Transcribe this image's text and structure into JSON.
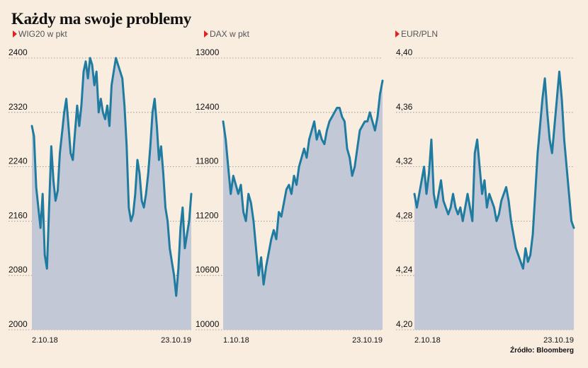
{
  "title": "Każdy ma swoje problemy",
  "source": "Źródło: Bloomberg",
  "colors": {
    "line": "#1f7ba0",
    "area": "#c3c8d6",
    "background": "#f9ede0",
    "marker": "#e2221c"
  },
  "chart_data": [
    {
      "type": "area",
      "title": "WIG20 w pkt",
      "ylim": [
        2000,
        2400
      ],
      "yticks": [
        "2400",
        "2320",
        "2240",
        "2160",
        "2080",
        "2000"
      ],
      "x_start": "2.10.18",
      "x_end": "23.10.19",
      "values": [
        2300,
        2285,
        2210,
        2180,
        2150,
        2200,
        2110,
        2090,
        2180,
        2270,
        2220,
        2190,
        2205,
        2260,
        2290,
        2320,
        2340,
        2300,
        2260,
        2250,
        2290,
        2330,
        2300,
        2330,
        2380,
        2395,
        2370,
        2400,
        2390,
        2360,
        2380,
        2320,
        2340,
        2320,
        2310,
        2330,
        2300,
        2360,
        2380,
        2400,
        2390,
        2380,
        2370,
        2330,
        2270,
        2180,
        2160,
        2170,
        2200,
        2250,
        2230,
        2190,
        2180,
        2200,
        2230,
        2270,
        2320,
        2340,
        2300,
        2250,
        2270,
        2230,
        2180,
        2160,
        2120,
        2100,
        2080,
        2050,
        2090,
        2150,
        2180,
        2120,
        2140,
        2160,
        2200
      ],
      "grid": true,
      "legend": "none"
    },
    {
      "type": "area",
      "title": "DAX w pkt",
      "ylim": [
        10000,
        13000
      ],
      "yticks": [
        "13000",
        "12400",
        "11800",
        "11200",
        "10600",
        "10000"
      ],
      "x_start": "1.10.18",
      "x_end": "23.10.19",
      "values": [
        12300,
        12100,
        11800,
        11500,
        11700,
        11600,
        11500,
        11600,
        11300,
        11200,
        11500,
        11400,
        11200,
        10900,
        10600,
        10800,
        10500,
        10700,
        10850,
        11000,
        11100,
        11000,
        11300,
        11250,
        11400,
        11550,
        11600,
        11500,
        11700,
        11600,
        11800,
        11900,
        12000,
        11900,
        12100,
        12200,
        12300,
        12100,
        12200,
        12100,
        12050,
        12200,
        12300,
        12350,
        12400,
        12450,
        12450,
        12350,
        12300,
        12000,
        11900,
        11700,
        11800,
        12000,
        12200,
        12250,
        12300,
        12300,
        12400,
        12300,
        12200,
        12350,
        12600,
        12750
      ],
      "grid": true,
      "legend": "none"
    },
    {
      "type": "area",
      "title": "EUR/PLN",
      "ylim": [
        4.2,
        4.4
      ],
      "yticks": [
        "4,40",
        "4,36",
        "4,32",
        "4,28",
        "4,24",
        "4,20"
      ],
      "x_start": "2.10.18",
      "x_end": "23.10.19",
      "values": [
        4.3,
        4.29,
        4.3,
        4.31,
        4.32,
        4.3,
        4.315,
        4.34,
        4.3,
        4.29,
        4.3,
        4.31,
        4.295,
        4.29,
        4.285,
        4.29,
        4.3,
        4.29,
        4.285,
        4.29,
        4.28,
        4.29,
        4.3,
        4.29,
        4.28,
        4.33,
        4.34,
        4.32,
        4.3,
        4.31,
        4.29,
        4.3,
        4.295,
        4.29,
        4.28,
        4.285,
        4.295,
        4.3,
        4.305,
        4.295,
        4.28,
        4.27,
        4.26,
        4.255,
        4.25,
        4.245,
        4.26,
        4.25,
        4.255,
        4.27,
        4.3,
        4.33,
        4.35,
        4.37,
        4.385,
        4.36,
        4.34,
        4.33,
        4.35,
        4.37,
        4.39,
        4.37,
        4.34,
        4.32,
        4.3,
        4.28,
        4.275
      ],
      "grid": true,
      "legend": "none"
    }
  ]
}
